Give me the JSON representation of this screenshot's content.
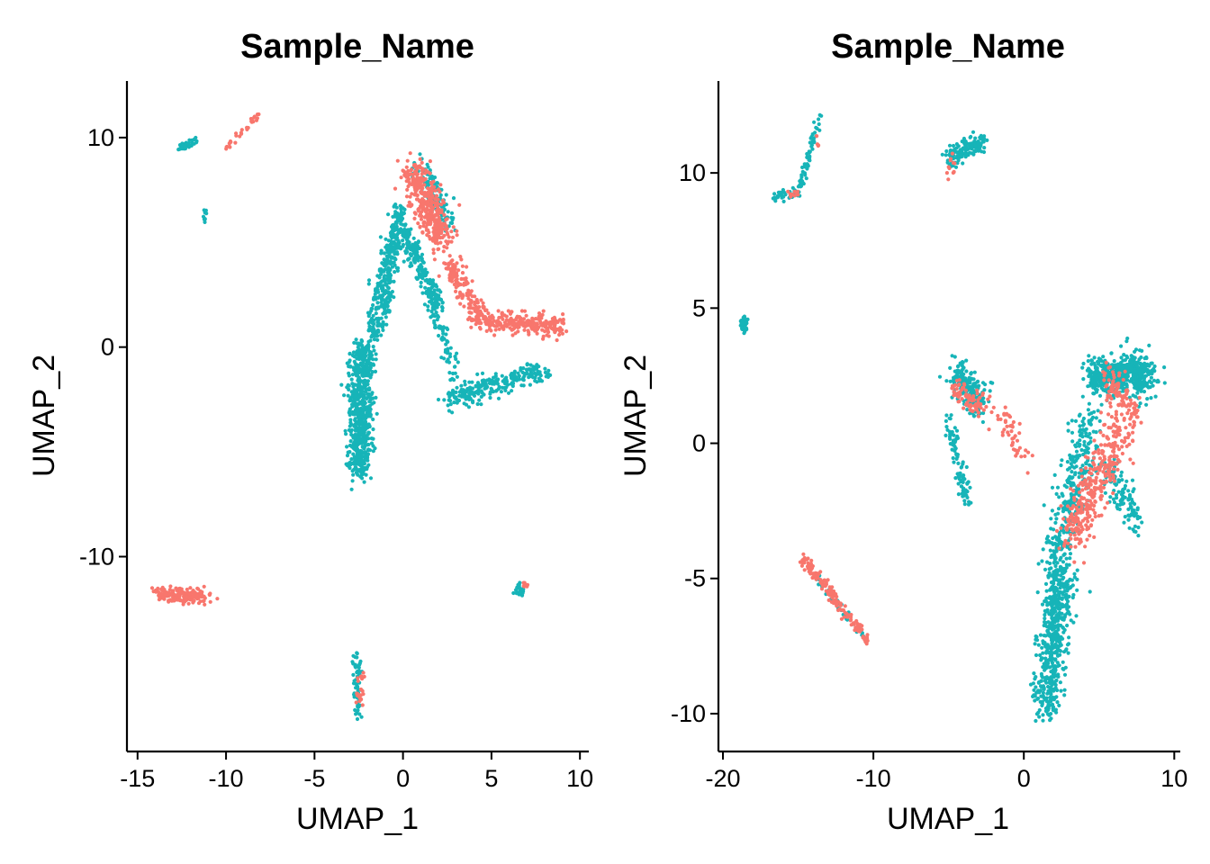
{
  "colors": {
    "red": "#F8766D",
    "teal": "#17B4B8"
  },
  "chart_data": [
    {
      "type": "scatter",
      "title": "Sample_Name",
      "xlabel": "UMAP_1",
      "ylabel": "UMAP_2",
      "xlim": [
        -15.6,
        10.5
      ],
      "ylim": [
        -19.3,
        12.7
      ],
      "xticks": [
        -15,
        -10,
        -5,
        0,
        5,
        10
      ],
      "xtick_labels": [
        "-15",
        "-10",
        "-5",
        "0",
        "5",
        "10"
      ],
      "yticks": [
        -10,
        0,
        10
      ],
      "ytick_labels": [
        "-10",
        "0",
        "10"
      ],
      "grid": false,
      "legend": "none",
      "series": [
        {
          "color": "#17B4B8",
          "clusters": [
            {
              "x": [
                -12.8,
                -11.7
              ],
              "y": [
                9.4,
                9.9
              ],
              "n": 40,
              "jitter": 0.18
            },
            {
              "x": [
                -11.2,
                -11.2
              ],
              "y": [
                6.0,
                6.5
              ],
              "n": 10,
              "jitter": 0.1
            },
            {
              "x": [
                -2.6,
                -2.6
              ],
              "y": [
                -17.6,
                -14.6
              ],
              "n": 60,
              "jitter": 0.22
            },
            {
              "x": [
                6.6,
                6.6
              ],
              "y": [
                -11.6,
                -11.6
              ],
              "n": 30,
              "jitter": 0.3
            },
            {
              "x": [
                -2.5,
                -2.3
              ],
              "y": [
                -6.0,
                0.0
              ],
              "n": 650,
              "jitter": 0.6
            },
            {
              "x": [
                -1.6,
                -0.2
              ],
              "y": [
                0.5,
                6.5
              ],
              "n": 350,
              "jitter": 0.5
            },
            {
              "x": [
                0.0,
                2.0
              ],
              "y": [
                5.5,
                2.0
              ],
              "n": 200,
              "jitter": 0.4
            },
            {
              "x": [
                2.5,
                8.0
              ],
              "y": [
                -2.5,
                -1.0
              ],
              "n": 250,
              "jitter": 0.5
            },
            {
              "x": [
                1.5,
                3.0
              ],
              "y": [
                2.5,
                -1.5
              ],
              "n": 80,
              "jitter": 0.35
            },
            {
              "x": [
                1.0,
                2.5
              ],
              "y": [
                8.5,
                6.0
              ],
              "n": 120,
              "jitter": 0.5
            }
          ]
        },
        {
          "color": "#F8766D",
          "clusters": [
            {
              "x": [
                -10.0,
                -8.2
              ],
              "y": [
                9.5,
                11.0
              ],
              "n": 30,
              "jitter": 0.15
            },
            {
              "x": [
                -14.0,
                -11.0
              ],
              "y": [
                -11.8,
                -11.9
              ],
              "n": 170,
              "jitter": 0.35
            },
            {
              "x": [
                -2.5,
                -2.3
              ],
              "y": [
                -17.2,
                -15.6
              ],
              "n": 20,
              "jitter": 0.2
            },
            {
              "x": [
                6.9,
                6.9
              ],
              "y": [
                -11.4,
                -11.4
              ],
              "n": 8,
              "jitter": 0.15
            },
            {
              "x": [
                0.6,
                2.2
              ],
              "y": [
                8.5,
                5.0
              ],
              "n": 380,
              "jitter": 0.75
            },
            {
              "x": [
                2.5,
                4.5
              ],
              "y": [
                4.0,
                1.3
              ],
              "n": 150,
              "jitter": 0.5
            },
            {
              "x": [
                4.5,
                9.0
              ],
              "y": [
                1.2,
                1.0
              ],
              "n": 230,
              "jitter": 0.45
            }
          ]
        }
      ]
    },
    {
      "type": "scatter",
      "title": "Sample_Name",
      "xlabel": "UMAP_1",
      "ylabel": "UMAP_2",
      "xlim": [
        -20.3,
        10.4
      ],
      "ylim": [
        -11.4,
        13.4
      ],
      "xticks": [
        -20,
        -10,
        0,
        10
      ],
      "xtick_labels": [
        "-20",
        "-10",
        "0",
        "10"
      ],
      "yticks": [
        -10,
        -5,
        0,
        5,
        10
      ],
      "ytick_labels": [
        "-10",
        "-5",
        "0",
        "5",
        "10"
      ],
      "grid": false,
      "legend": "none",
      "series": [
        {
          "color": "#17B4B8",
          "clusters": [
            {
              "x": [
                -16.8,
                -15.0
              ],
              "y": [
                9.1,
                9.3
              ],
              "n": 40,
              "jitter": 0.2
            },
            {
              "x": [
                -15.0,
                -13.5
              ],
              "y": [
                9.3,
                12.2
              ],
              "n": 60,
              "jitter": 0.18
            },
            {
              "x": [
                -18.6,
                -18.6
              ],
              "y": [
                4.2,
                4.6
              ],
              "n": 40,
              "jitter": 0.18
            },
            {
              "x": [
                -5.0,
                -2.5
              ],
              "y": [
                10.5,
                11.3
              ],
              "n": 140,
              "jitter": 0.35
            },
            {
              "x": [
                -14.0,
                -10.5
              ],
              "y": [
                -4.8,
                -7.2
              ],
              "n": 35,
              "jitter": 0.2
            },
            {
              "x": [
                -4.5,
                -2.8
              ],
              "y": [
                2.5,
                1.5
              ],
              "n": 220,
              "jitter": 0.6
            },
            {
              "x": [
                -5.0,
                -3.8
              ],
              "y": [
                1.0,
                -2.3
              ],
              "n": 90,
              "jitter": 0.3
            },
            {
              "x": [
                4.5,
                8.5
              ],
              "y": [
                2.5,
                2.5
              ],
              "n": 550,
              "jitter": 0.7
            },
            {
              "x": [
                2.0,
                4.5
              ],
              "y": [
                -4.5,
                1.0
              ],
              "n": 300,
              "jitter": 0.9
            },
            {
              "x": [
                1.5,
                2.5
              ],
              "y": [
                -9.8,
                -4.5
              ],
              "n": 550,
              "jitter": 0.85
            },
            {
              "x": [
                5.5,
                7.5
              ],
              "y": [
                -1.0,
                -3.0
              ],
              "n": 120,
              "jitter": 0.6
            }
          ]
        },
        {
          "color": "#F8766D",
          "clusters": [
            {
              "x": [
                -16.0,
                -15.0
              ],
              "y": [
                9.0,
                9.3
              ],
              "n": 10,
              "jitter": 0.15
            },
            {
              "x": [
                -13.7,
                -13.6
              ],
              "y": [
                11.5,
                11.0
              ],
              "n": 4,
              "jitter": 0.1
            },
            {
              "x": [
                -5.0,
                -4.7
              ],
              "y": [
                10.0,
                10.3
              ],
              "n": 12,
              "jitter": 0.3
            },
            {
              "x": [
                -14.8,
                -10.3
              ],
              "y": [
                -4.2,
                -7.3
              ],
              "n": 150,
              "jitter": 0.22
            },
            {
              "x": [
                -4.5,
                -2.5
              ],
              "y": [
                2.0,
                1.2
              ],
              "n": 80,
              "jitter": 0.5
            },
            {
              "x": [
                -1.5,
                0.0
              ],
              "y": [
                1.0,
                -0.5
              ],
              "n": 45,
              "jitter": 0.55
            },
            {
              "x": [
                3.0,
                6.5
              ],
              "y": [
                -3.5,
                0.5
              ],
              "n": 330,
              "jitter": 0.9
            },
            {
              "x": [
                5.5,
                7.5
              ],
              "y": [
                2.5,
                1.0
              ],
              "n": 100,
              "jitter": 0.6
            }
          ]
        }
      ]
    }
  ]
}
